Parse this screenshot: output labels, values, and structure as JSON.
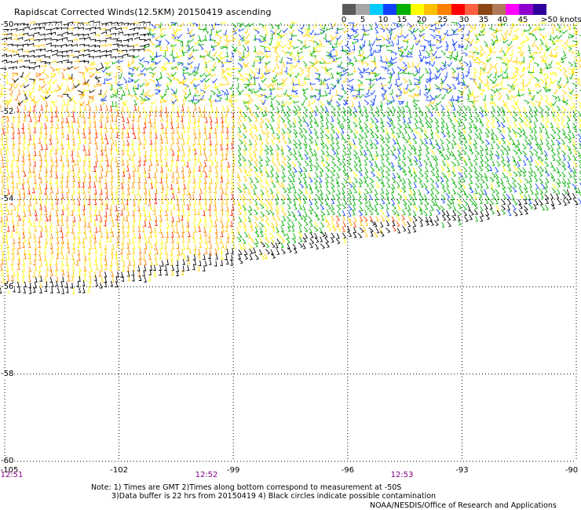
{
  "header": {
    "title": "Rapidscat Corrected Winds(12.5KM) 20150419 ascending"
  },
  "legend": {
    "colors": [
      "#5a5a5a",
      "#a6a6a6",
      "#00ccff",
      "#1040ff",
      "#00b000",
      "#ffff00",
      "#ffc000",
      "#ff8000",
      "#ff0000",
      "#ff6040",
      "#8b4513",
      "#b07a5a",
      "#ff00ff",
      "#9000cc",
      "#30009a"
    ],
    "tick_labels": [
      "0",
      "5",
      "10",
      "15",
      "20",
      "25",
      "30",
      "35",
      "40",
      "45",
      ">50 knots"
    ]
  },
  "map": {
    "lat_labels": [
      "-50",
      "-52",
      "-54",
      "-56",
      "-58",
      "-60"
    ],
    "lon_labels": [
      "-105",
      "-102",
      "-99",
      "-96",
      "-93",
      "-90"
    ],
    "time_labels": [
      "12:51",
      "12:52",
      "12:53"
    ]
  },
  "chart_data": {
    "type": "wind-vector-map",
    "title": "Rapidscat Corrected Winds(12.5KM) 20150419 ascending",
    "lat_range": [
      -60,
      -50
    ],
    "lon_range": [
      -105,
      -90
    ],
    "units": "knots",
    "legend_bins_knots": [
      0,
      5,
      10,
      15,
      20,
      25,
      30,
      35,
      40,
      45,
      50
    ],
    "regions": [
      {
        "area": "NW corner (-105 to -101, -50 to -51)",
        "speed_class": ">50 knots",
        "color": "black"
      },
      {
        "area": "north (-101 to -93, -50 to -52)",
        "speed_class": "15-25 knots",
        "color": "mixed green/blue/yellow"
      },
      {
        "area": "west (-105 to -99, -52 to -55)",
        "speed_class": "25-35 knots",
        "color": "orange/red/yellow"
      },
      {
        "area": "east (-99 to -90, -52 to -55)",
        "speed_class": "15-20 knots",
        "color": "green"
      },
      {
        "area": "swath southern edge (~-55.5 to -56)",
        "speed_class": "contaminated/high",
        "color": "black"
      }
    ],
    "grid": true
  },
  "notes": {
    "line1": "Note: 1) Times are GMT 2)Times along bottom correspond to measurement at -50S",
    "line2": "3)Data buffer is 22 hrs from 20150419 4) Black circles indicate possible contamination",
    "credit": "NOAA/NESDIS/Office of Research and Applications"
  }
}
